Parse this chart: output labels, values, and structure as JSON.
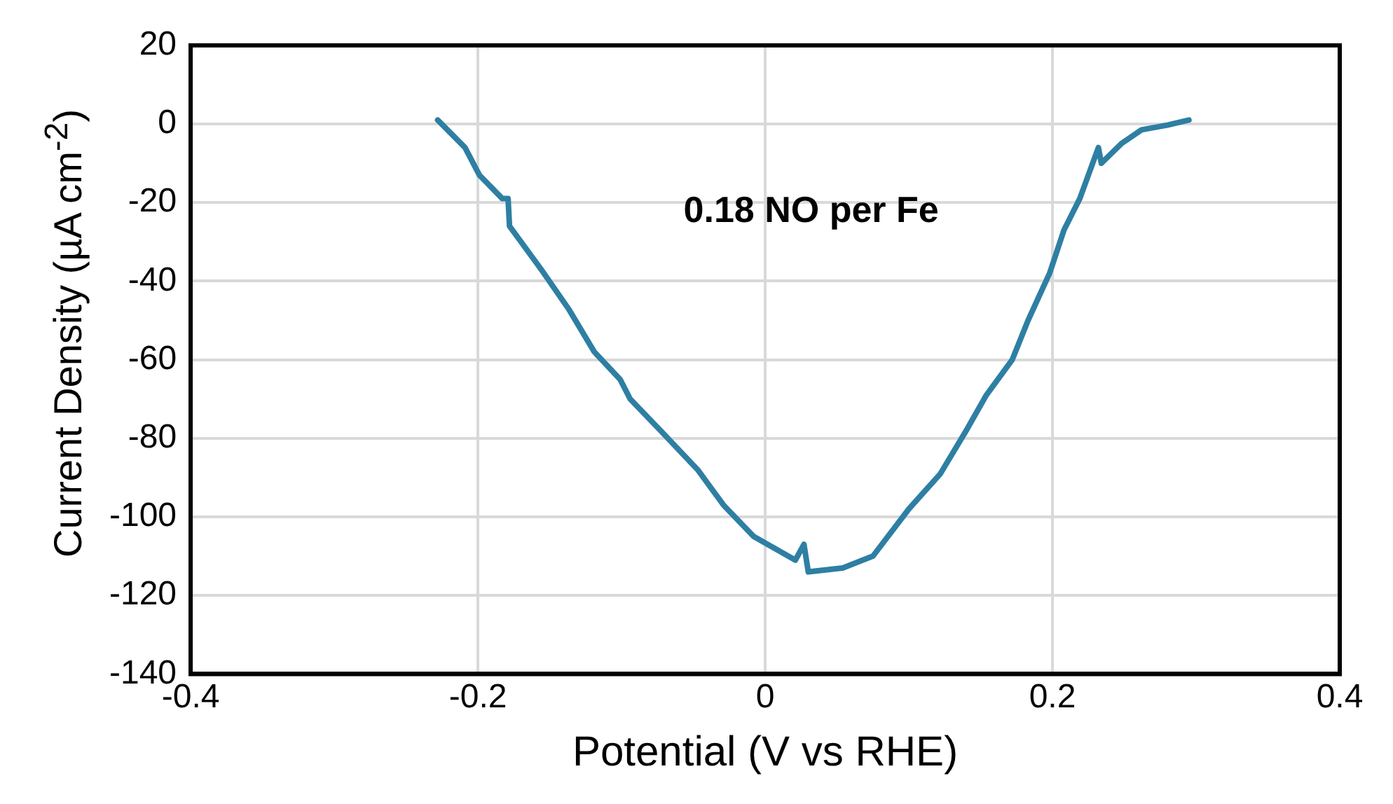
{
  "chart_data": {
    "type": "line",
    "xlabel": "Potential (V vs RHE)",
    "ylabel": "Current Density (µA cm$^{-2}$)",
    "annotations": [
      "0.18 NO per Fe"
    ],
    "series": [
      {
        "color": "#2e7fa3",
        "x": [
          -0.228,
          -0.209,
          -0.199,
          -0.183,
          -0.179,
          -0.178,
          -0.156,
          -0.137,
          -0.119,
          -0.101,
          -0.094,
          -0.073,
          -0.047,
          -0.029,
          -0.008,
          0.021,
          0.027,
          0.03,
          0.054,
          0.075,
          0.1,
          0.122,
          0.14,
          0.154,
          0.172,
          0.183,
          0.198,
          0.208,
          0.219,
          0.232,
          0.234,
          0.248,
          0.262,
          0.28,
          0.295
        ],
        "values": [
          1,
          -6,
          -13,
          -19,
          -19,
          -26,
          -37,
          -47,
          -58,
          -65,
          -70,
          -78,
          -88,
          -97,
          -105,
          -111,
          -107,
          -114,
          -113,
          -110,
          -98,
          -89,
          -78,
          -69,
          -60,
          -50,
          -38,
          -27,
          -19,
          -6,
          -10,
          -5,
          -1.5,
          -0.3,
          1
        ]
      }
    ],
    "xlim": [
      -0.4,
      0.4
    ],
    "xticks": [
      -0.4,
      -0.2,
      0,
      0.2,
      0.4
    ],
    "ylim": [
      -140,
      20
    ],
    "yticks": [
      -140,
      -120,
      -100,
      -80,
      -60,
      -40,
      -20,
      0,
      20
    ],
    "grid": true,
    "legend": false,
    "marker": "none",
    "line_style": "solid"
  }
}
